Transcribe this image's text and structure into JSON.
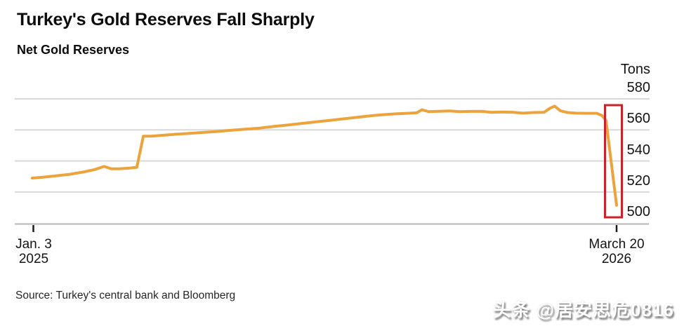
{
  "header": {
    "title": "Turkey's Gold Reserves Fall Sharply",
    "subtitle": "Net Gold Reserves"
  },
  "footer": {
    "source": "Source: Turkey's central bank and Bloomberg",
    "watermark": "头条 @居安思危0816"
  },
  "colors": {
    "line_orange": "#ECA33C",
    "highlight_red": "#C8232B",
    "gridline_gray": "#D9D9D9",
    "axis_gray": "#B4B4B4",
    "tick_black": "#1A1A1A"
  },
  "chart_data": {
    "type": "line",
    "title": "Turkey's Gold Reserves Fall Sharply",
    "subtitle": "Net Gold Reserves",
    "unit_label": "Tons",
    "xlabel": "",
    "ylabel": "Tons",
    "ylim": [
      495,
      585
    ],
    "y_ticks": [
      580,
      560,
      540,
      520,
      500
    ],
    "grid": true,
    "legend": false,
    "x_range": [
      "Jan. 3 2025",
      "March 20 2026"
    ],
    "x_ticks": [
      {
        "line1": "Jan. 3",
        "line2": "2025",
        "position": 0
      },
      {
        "line1": "March 20",
        "line2": "2026",
        "position": 1
      }
    ],
    "series": [
      {
        "name": "Net gold reserves",
        "unit": "tons",
        "points": [
          [
            0.0,
            529
          ],
          [
            0.017,
            529.5
          ],
          [
            0.041,
            530.5
          ],
          [
            0.065,
            531.5
          ],
          [
            0.089,
            533
          ],
          [
            0.107,
            534.5
          ],
          [
            0.123,
            536.5
          ],
          [
            0.135,
            535
          ],
          [
            0.149,
            535
          ],
          [
            0.163,
            535.3
          ],
          [
            0.177,
            535.8
          ],
          [
            0.179,
            536
          ],
          [
            0.19,
            556
          ],
          [
            0.203,
            556
          ],
          [
            0.221,
            556.5
          ],
          [
            0.245,
            557.2
          ],
          [
            0.269,
            557.8
          ],
          [
            0.293,
            558.4
          ],
          [
            0.317,
            559
          ],
          [
            0.341,
            559.8
          ],
          [
            0.365,
            560.5
          ],
          [
            0.389,
            561.2
          ],
          [
            0.413,
            562.2
          ],
          [
            0.438,
            563.2
          ],
          [
            0.462,
            564.2
          ],
          [
            0.486,
            565.2
          ],
          [
            0.51,
            566.2
          ],
          [
            0.534,
            567.2
          ],
          [
            0.558,
            568.2
          ],
          [
            0.582,
            569.2
          ],
          [
            0.606,
            570
          ],
          [
            0.624,
            570.4
          ],
          [
            0.642,
            570.7
          ],
          [
            0.658,
            571
          ],
          [
            0.667,
            573
          ],
          [
            0.678,
            571.8
          ],
          [
            0.696,
            572
          ],
          [
            0.714,
            572.2
          ],
          [
            0.732,
            571.8
          ],
          [
            0.75,
            571.9
          ],
          [
            0.768,
            572
          ],
          [
            0.786,
            571.3
          ],
          [
            0.804,
            571.5
          ],
          [
            0.822,
            571.4
          ],
          [
            0.84,
            570.8
          ],
          [
            0.858,
            571.2
          ],
          [
            0.876,
            571.4
          ],
          [
            0.886,
            574
          ],
          [
            0.894,
            575.3
          ],
          [
            0.904,
            572.3
          ],
          [
            0.916,
            571.2
          ],
          [
            0.93,
            570.8
          ],
          [
            0.948,
            570.7
          ],
          [
            0.966,
            570.7
          ],
          [
            0.975,
            569.3
          ],
          [
            0.982,
            566
          ],
          [
            1.0,
            511.5
          ]
        ]
      }
    ],
    "annotation": {
      "type": "highlight-box",
      "description": "Red rectangle highlighting the sharp drop at the end of the series",
      "approx_drop": "from ~570 tons to ~511 tons"
    }
  }
}
